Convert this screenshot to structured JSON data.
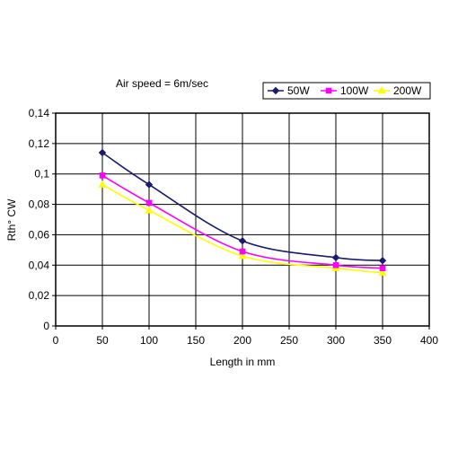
{
  "chart_data": {
    "type": "line",
    "title": "Air speed = 6m/sec",
    "xlabel": "Length in mm",
    "ylabel": "Rth° CW",
    "xlim": [
      0,
      400
    ],
    "ylim": [
      0,
      0.14
    ],
    "x_ticks": [
      "0",
      "50",
      "100",
      "150",
      "200",
      "250",
      "300",
      "350",
      "400"
    ],
    "y_ticks": [
      "0",
      "0,02",
      "0,04",
      "0,06",
      "0,08",
      "0,1",
      "0,12",
      "0,14"
    ],
    "grid": true,
    "legend_position": "top-right",
    "x": [
      50,
      100,
      200,
      300,
      350
    ],
    "series": [
      {
        "name": "50W",
        "color": "#1a1a6e",
        "marker": "diamond",
        "values": [
          0.114,
          0.093,
          0.056,
          0.045,
          0.043
        ]
      },
      {
        "name": "100W",
        "color": "#ff00ff",
        "marker": "square",
        "values": [
          0.099,
          0.081,
          0.049,
          0.04,
          0.038
        ]
      },
      {
        "name": "200W",
        "color": "#ffff00",
        "marker": "triangle",
        "values": [
          0.093,
          0.076,
          0.046,
          0.038,
          0.035
        ]
      }
    ]
  }
}
